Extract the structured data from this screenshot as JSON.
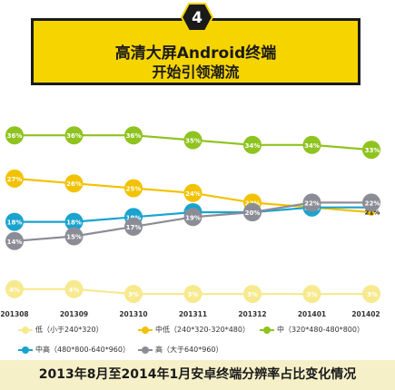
{
  "banner": {
    "badge_number": "4",
    "title_line1": "高清大屏Android终端",
    "title_line2": "开始引领潮流"
  },
  "footer": {
    "caption": "2013年8月至2014年1月安卓终端分辨率占比变化情况"
  },
  "chart_data": {
    "type": "line",
    "categories": [
      "201308",
      "201309",
      "201310",
      "201311",
      "201312",
      "201401",
      "201402"
    ],
    "ylim": [
      0,
      40
    ],
    "grid": false,
    "legend_position": "bottom",
    "series": [
      {
        "name": "低（小于240*320）",
        "color": "#f7e98e",
        "values": [
          4,
          4,
          3,
          3,
          3,
          3,
          3
        ],
        "labels": [
          "4%",
          "4%",
          "3%",
          "3%",
          "3%",
          "3%",
          "3%"
        ]
      },
      {
        "name": "中低（240*320-320*480）",
        "color": "#f2c200",
        "values": [
          27,
          26,
          25,
          24,
          22,
          21,
          20
        ],
        "labels": [
          "27%",
          "26%",
          "25%",
          "24%",
          "22%",
          "21%",
          "20%"
        ]
      },
      {
        "name": "中（320*480-480*800）",
        "color": "#8fc31f",
        "values": [
          36,
          36,
          36,
          35,
          34,
          34,
          33
        ],
        "labels": [
          "36%",
          "36%",
          "36%",
          "35%",
          "34%",
          "34%",
          "33%"
        ]
      },
      {
        "name": "中高（480*800-640*960）",
        "color": "#1aa3cf",
        "values": [
          18,
          18,
          19,
          20,
          20,
          21,
          21
        ],
        "labels": [
          "18%",
          "18%",
          "19%",
          "20%",
          "20%",
          "21%",
          "21%"
        ]
      },
      {
        "name": "高（大于640*960）",
        "color": "#8c8c96",
        "values": [
          14,
          15,
          17,
          19,
          20,
          22,
          22
        ],
        "labels": [
          "14%",
          "15%",
          "17%",
          "19%",
          "20%",
          "22%",
          "22%"
        ]
      }
    ]
  }
}
